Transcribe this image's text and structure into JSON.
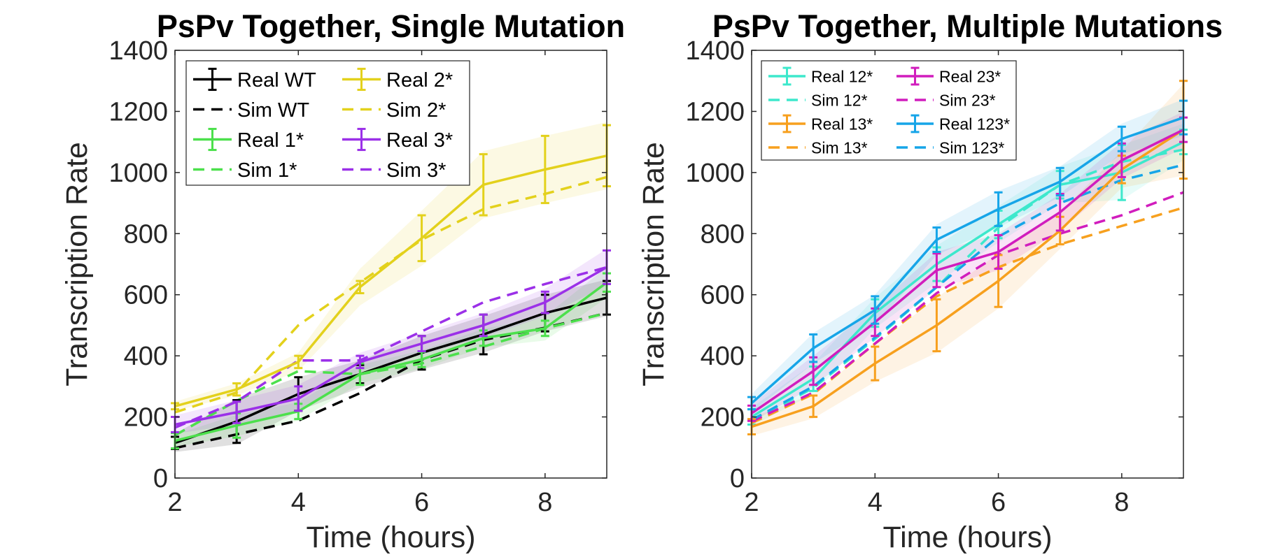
{
  "chart_data": [
    {
      "type": "line",
      "title": "PsPv Together, Single Mutation",
      "xlabel": "Time (hours)",
      "ylabel": "Transcription Rate",
      "xlim": [
        2,
        9
      ],
      "ylim": [
        0,
        1400
      ],
      "xticks": [
        2,
        4,
        6,
        8
      ],
      "yticks": [
        0,
        200,
        400,
        600,
        800,
        1000,
        1200,
        1400
      ],
      "legend_position": "top-left",
      "legend_columns": 2,
      "x": [
        2,
        3,
        4,
        5,
        6,
        7,
        8,
        9
      ],
      "series": [
        {
          "name": "Real WT",
          "kind": "real",
          "color": "#000000",
          "values": [
            115,
            185,
            275,
            340,
            410,
            470,
            540,
            590
          ],
          "err": [
            20,
            70,
            55,
            30,
            55,
            65,
            60,
            55
          ],
          "band": [
            30,
            75,
            55,
            45,
            55,
            60,
            60,
            60
          ]
        },
        {
          "name": "Sim WT",
          "kind": "sim",
          "color": "#000000",
          "values": [
            98,
            143,
            188,
            278,
            387,
            452,
            492,
            540
          ]
        },
        {
          "name": "Real 1*",
          "kind": "real",
          "color": "#4ce04c",
          "values": [
            122,
            172,
            218,
            340,
            388,
            458,
            490,
            640
          ],
          "err": [
            25,
            40,
            25,
            35,
            25,
            25,
            25,
            30
          ],
          "band": [
            20,
            35,
            30,
            30,
            30,
            30,
            40,
            50
          ]
        },
        {
          "name": "Sim 1*",
          "kind": "sim",
          "color": "#4ce04c",
          "values": [
            140,
            253,
            350,
            340,
            375,
            430,
            490,
            540
          ]
        },
        {
          "name": "Real 2*",
          "kind": "real",
          "color": "#e3d11c",
          "values": [
            235,
            290,
            380,
            625,
            785,
            960,
            1010,
            1055
          ],
          "err": [
            10,
            20,
            20,
            20,
            75,
            100,
            110,
            100
          ],
          "band": [
            15,
            20,
            30,
            60,
            90,
            110,
            110,
            110
          ]
        },
        {
          "name": "Sim 2*",
          "kind": "sim",
          "color": "#e3d11c",
          "values": [
            215,
            280,
            500,
            640,
            780,
            880,
            930,
            985
          ]
        },
        {
          "name": "Real 3*",
          "kind": "real",
          "color": "#9b30e8",
          "values": [
            175,
            215,
            260,
            380,
            440,
            500,
            575,
            690
          ],
          "err": [
            25,
            35,
            40,
            20,
            25,
            35,
            35,
            55
          ],
          "band": [
            30,
            40,
            45,
            30,
            35,
            40,
            45,
            60
          ]
        },
        {
          "name": "Sim 3*",
          "kind": "sim",
          "color": "#9b30e8",
          "values": [
            165,
            250,
            385,
            385,
            480,
            575,
            635,
            690
          ]
        }
      ]
    },
    {
      "type": "line",
      "title": "PsPv Together, Multiple Mutations",
      "xlabel": "Time (hours)",
      "ylabel": "Transcription Rate",
      "xlim": [
        2,
        9
      ],
      "ylim": [
        0,
        1400
      ],
      "xticks": [
        2,
        4,
        6,
        8
      ],
      "yticks": [
        0,
        200,
        400,
        600,
        800,
        1000,
        1200,
        1400
      ],
      "legend_position": "top-left",
      "legend_columns": 2,
      "x": [
        2,
        3,
        4,
        5,
        6,
        7,
        8,
        9
      ],
      "series": [
        {
          "name": "Real 12*",
          "kind": "real",
          "color": "#3de8cc",
          "values": [
            200,
            325,
            540,
            700,
            830,
            960,
            1000,
            1100
          ],
          "err": [
            25,
            40,
            45,
            55,
            45,
            45,
            90,
            40
          ],
          "band": [
            30,
            50,
            50,
            60,
            60,
            60,
            90,
            60
          ]
        },
        {
          "name": "Sim 12*",
          "kind": "sim",
          "color": "#3de8cc",
          "values": [
            185,
            295,
            455,
            625,
            820,
            960,
            1035,
            1075
          ]
        },
        {
          "name": "Real 13*",
          "kind": "real",
          "color": "#f7a01e",
          "values": [
            168,
            235,
            375,
            500,
            645,
            810,
            1010,
            1140
          ],
          "err": [
            25,
            35,
            55,
            85,
            85,
            45,
            45,
            160
          ],
          "band": [
            30,
            40,
            60,
            90,
            90,
            60,
            60,
            150
          ]
        },
        {
          "name": "Sim 13*",
          "kind": "sim",
          "color": "#f7a01e",
          "values": [
            180,
            275,
            440,
            595,
            690,
            765,
            825,
            885
          ]
        },
        {
          "name": "Real 23*",
          "kind": "real",
          "color": "#d11dbd",
          "values": [
            212,
            350,
            510,
            680,
            740,
            870,
            1040,
            1140
          ],
          "err": [
            25,
            45,
            45,
            55,
            55,
            60,
            55,
            40
          ],
          "band": [
            30,
            50,
            50,
            60,
            60,
            60,
            60,
            60
          ]
        },
        {
          "name": "Sim 23*",
          "kind": "sim",
          "color": "#d11dbd",
          "values": [
            185,
            280,
            440,
            605,
            730,
            800,
            860,
            935
          ]
        },
        {
          "name": "Real 123*",
          "kind": "real",
          "color": "#16a5e8",
          "values": [
            245,
            425,
            550,
            780,
            880,
            970,
            1110,
            1180
          ],
          "err": [
            20,
            45,
            45,
            40,
            55,
            45,
            40,
            55
          ],
          "band": [
            30,
            50,
            50,
            50,
            60,
            50,
            50,
            60
          ]
        },
        {
          "name": "Sim 123*",
          "kind": "sim",
          "color": "#16a5e8",
          "values": [
            190,
            300,
            460,
            625,
            790,
            900,
            975,
            1025
          ]
        }
      ]
    }
  ]
}
